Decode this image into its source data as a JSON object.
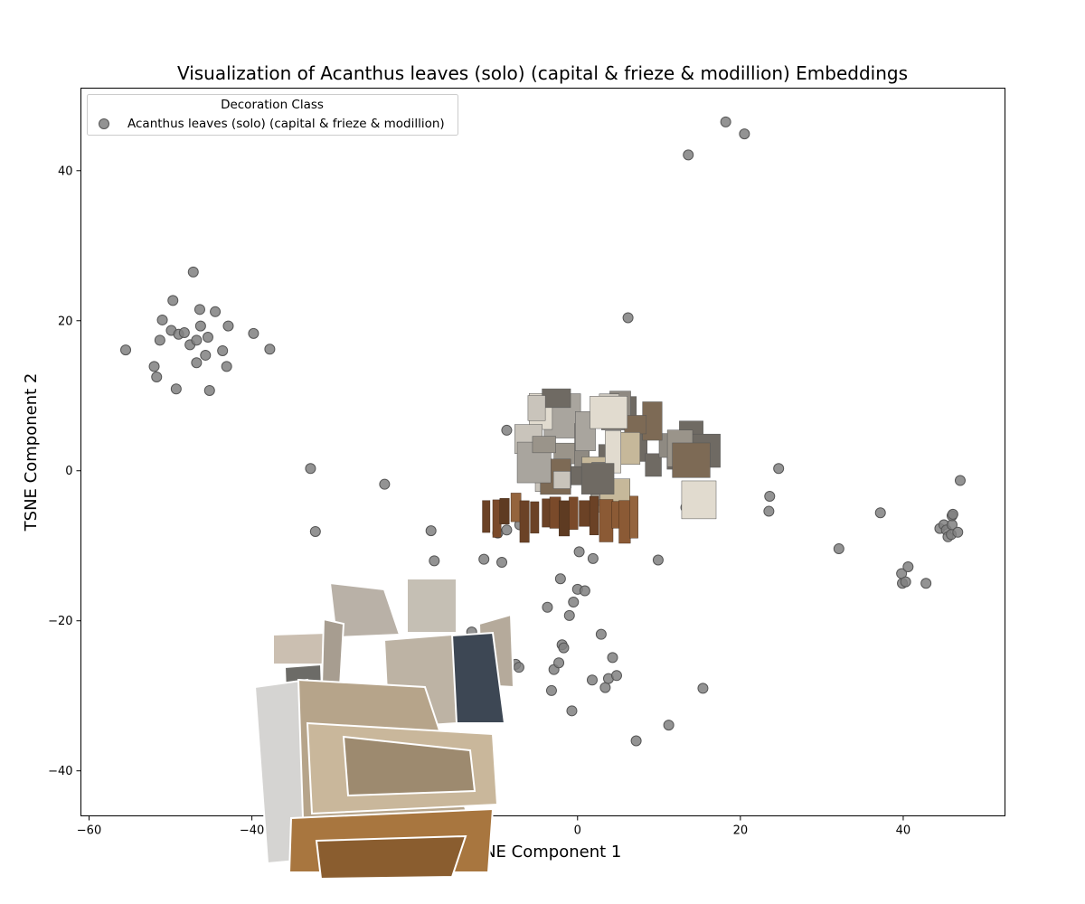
{
  "chart_data": {
    "type": "scatter",
    "title": "Visualization of Acanthus leaves (solo) (capital & frieze & modillion) Embeddings",
    "xlabel": "TSNE Component 1",
    "ylabel": "TSNE Component 2",
    "xlim": [
      -61,
      52.5
    ],
    "ylim": [
      -46,
      51
    ],
    "xticks": [
      -60,
      -40,
      -20,
      0,
      20,
      40
    ],
    "yticks": [
      -40,
      -20,
      0,
      20,
      40
    ],
    "xtick_labels": [
      "−60",
      "−40",
      "−20",
      "0",
      "20",
      "40"
    ],
    "ytick_labels": [
      "−40",
      "−20",
      "0",
      "20",
      "40"
    ],
    "grid": false,
    "legend": {
      "title": "Decoration Class",
      "placement": "top-left",
      "entries": [
        "Acanthus leaves (solo) (capital & frieze & modillion)"
      ]
    },
    "marker_color": "#808080",
    "marker_edge_color": "#555555",
    "series": [
      {
        "name": "Acanthus leaves (solo) (capital & frieze & modillion)",
        "points": [
          [
            -55.5,
            16.1
          ],
          [
            -52.0,
            13.9
          ],
          [
            -51.7,
            12.5
          ],
          [
            -51.3,
            17.4
          ],
          [
            -51.0,
            20.1
          ],
          [
            -49.9,
            18.7
          ],
          [
            -49.7,
            22.7
          ],
          [
            -49.3,
            10.9
          ],
          [
            -49.0,
            18.2
          ],
          [
            -48.3,
            18.4
          ],
          [
            -47.6,
            16.8
          ],
          [
            -47.2,
            26.5
          ],
          [
            -46.8,
            17.4
          ],
          [
            -46.8,
            14.4
          ],
          [
            -46.4,
            21.5
          ],
          [
            -46.3,
            19.3
          ],
          [
            -45.7,
            15.4
          ],
          [
            -45.4,
            17.8
          ],
          [
            -45.2,
            10.7
          ],
          [
            -44.5,
            21.2
          ],
          [
            -43.6,
            16.0
          ],
          [
            -43.1,
            13.9
          ],
          [
            -42.9,
            19.3
          ],
          [
            -39.8,
            18.3
          ],
          [
            -37.8,
            16.2
          ],
          [
            -32.8,
            0.3
          ],
          [
            -32.2,
            -8.1
          ],
          [
            -23.7,
            -1.8
          ],
          [
            -18.0,
            -8.0
          ],
          [
            -17.6,
            -12.0
          ],
          [
            -13.0,
            -21.5
          ],
          [
            -11.5,
            -11.8
          ],
          [
            -9.8,
            -8.3
          ],
          [
            -9.3,
            -12.2
          ],
          [
            -8.7,
            5.4
          ],
          [
            -8.7,
            -7.9
          ],
          [
            -7.6,
            -25.8
          ],
          [
            -7.2,
            -26.2
          ],
          [
            -7.1,
            -7.2
          ],
          [
            -3.7,
            -18.2
          ],
          [
            -3.2,
            -29.3
          ],
          [
            -2.9,
            -26.5
          ],
          [
            -2.3,
            -25.6
          ],
          [
            -2.1,
            -14.4
          ],
          [
            -1.9,
            -23.2
          ],
          [
            -1.7,
            -23.6
          ],
          [
            -1.0,
            -19.3
          ],
          [
            -0.7,
            -32.0
          ],
          [
            -0.5,
            -17.5
          ],
          [
            0.0,
            -15.8
          ],
          [
            0.2,
            -10.8
          ],
          [
            0.9,
            -16.0
          ],
          [
            1.8,
            -27.9
          ],
          [
            1.9,
            -11.7
          ],
          [
            2.9,
            -21.8
          ],
          [
            3.4,
            -28.9
          ],
          [
            3.8,
            -27.7
          ],
          [
            4.3,
            -24.9
          ],
          [
            4.8,
            -27.3
          ],
          [
            6.2,
            20.4
          ],
          [
            7.2,
            -36.0
          ],
          [
            9.9,
            -11.9
          ],
          [
            11.2,
            -33.9
          ],
          [
            13.3,
            -4.9
          ],
          [
            13.6,
            42.1
          ],
          [
            15.4,
            -29.0
          ],
          [
            18.2,
            46.5
          ],
          [
            20.5,
            44.9
          ],
          [
            23.5,
            -5.4
          ],
          [
            23.6,
            -3.4
          ],
          [
            24.7,
            0.3
          ],
          [
            32.1,
            -10.4
          ],
          [
            37.2,
            -5.6
          ],
          [
            39.8,
            -13.7
          ],
          [
            39.9,
            -15.0
          ],
          [
            40.3,
            -14.8
          ],
          [
            40.6,
            -12.8
          ],
          [
            42.8,
            -15.0
          ],
          [
            44.5,
            -7.7
          ],
          [
            45.0,
            -7.2
          ],
          [
            45.3,
            -7.9
          ],
          [
            45.5,
            -8.8
          ],
          [
            46.0,
            -7.2
          ],
          [
            45.9,
            -8.5
          ],
          [
            46.0,
            -6.0
          ],
          [
            46.1,
            -5.8
          ],
          [
            46.7,
            -8.2
          ],
          [
            47.0,
            -1.3
          ]
        ]
      }
    ]
  }
}
